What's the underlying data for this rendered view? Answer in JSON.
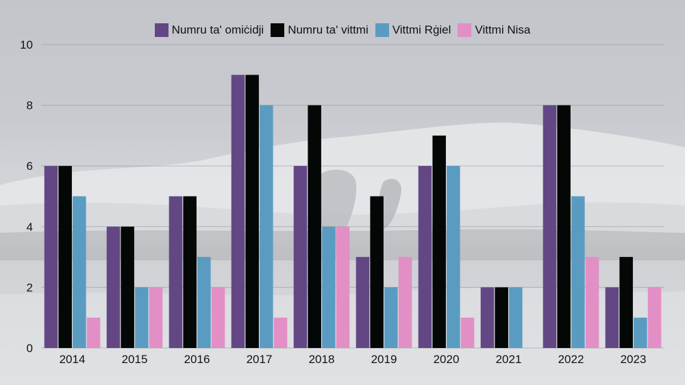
{
  "chart_data": {
    "type": "bar",
    "categories": [
      "2014",
      "2015",
      "2016",
      "2017",
      "2018",
      "2019",
      "2020",
      "2021",
      "2022",
      "2023"
    ],
    "series": [
      {
        "name": "Numru ta' omiċidji",
        "color": "#634784",
        "values": [
          6,
          4,
          5,
          9,
          6,
          3,
          6,
          2,
          8,
          2
        ]
      },
      {
        "name": "Numru ta' vittmi",
        "color": "#030705",
        "values": [
          6,
          4,
          5,
          9,
          8,
          5,
          7,
          2,
          8,
          3
        ]
      },
      {
        "name": "Vittmi Rġiel",
        "color": "#5a9bc2",
        "values": [
          5,
          2,
          3,
          8,
          4,
          2,
          6,
          2,
          5,
          1
        ]
      },
      {
        "name": "Vittmi Nisa",
        "color": "#e28fc6",
        "values": [
          1,
          2,
          2,
          1,
          4,
          3,
          1,
          0,
          3,
          2
        ]
      }
    ],
    "y_ticks": [
      "0",
      "2",
      "4",
      "6",
      "8",
      "10"
    ],
    "ylim": [
      0,
      10
    ],
    "legend_position": "top-center",
    "grid": true
  }
}
